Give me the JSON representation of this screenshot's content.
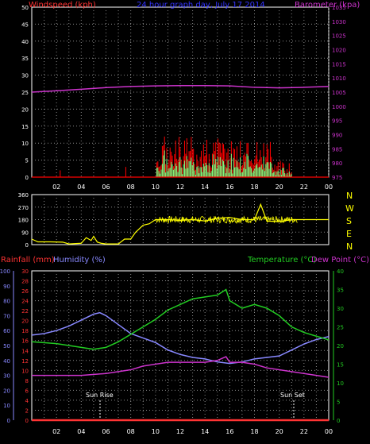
{
  "colors": {
    "wind": "#ff0000",
    "gust_fill": "#ffffff",
    "avg_fill": "#7fff7f",
    "barometer": "#cc33cc",
    "title": "#3333ff",
    "direction": "#ffff00",
    "rainfall": "#ff3333",
    "humidity": "#8888ff",
    "temperature": "#22cc22",
    "dewpoint": "#cc33cc",
    "grid": "#8a8a8a",
    "axis_labels": "#ffffff"
  },
  "top_panel": {
    "title": "24 hour graph day, July 17 2014",
    "left_label": "Windspeed (kph)",
    "right_label": "Barometer (kpa)"
  },
  "direction_panel": {
    "compass": [
      "N",
      "W",
      "S",
      "E",
      "N"
    ]
  },
  "bottom_panel": {
    "rain_label": "Rainfall (mm)",
    "hum_label": "Humidity (%)",
    "temp_label": "Temperature (°C)",
    "dew_label": "Dew Point (°C)",
    "sunrise_label": "Sun Rise",
    "sunset_label": "Sun Set"
  },
  "chart_data": [
    {
      "type": "line",
      "title": "24 hour graph day, July 17 2014",
      "x_label": "",
      "x_ticks": [
        "02",
        "04",
        "06",
        "08",
        "10",
        "12",
        "14",
        "16",
        "18",
        "20",
        "22",
        "00"
      ],
      "y_left": {
        "label": "Windspeed (kph)",
        "range": [
          0,
          50
        ],
        "ticks": [
          0,
          5,
          10,
          15,
          20,
          25,
          30,
          35,
          40,
          45,
          50
        ]
      },
      "y_right": {
        "label": "Barometer (kpa)",
        "range": [
          975,
          1035
        ],
        "ticks": [
          975,
          980,
          985,
          990,
          995,
          1000,
          1005,
          1010,
          1015,
          1020,
          1025,
          1030,
          1035
        ]
      },
      "grid": true,
      "series": [
        {
          "name": "Barometer (kpa)",
          "axis": "right",
          "x": [
            0,
            2,
            4,
            6,
            8,
            10,
            12,
            14,
            16,
            18,
            20,
            22,
            24
          ],
          "y": [
            1005.0,
            1005.5,
            1006.0,
            1006.6,
            1007.0,
            1007.2,
            1007.3,
            1007.3,
            1007.2,
            1006.7,
            1006.5,
            1006.7,
            1007.0
          ]
        }
      ]
    },
    {
      "type": "line",
      "title": "",
      "x_ticks": [
        "02",
        "04",
        "06",
        "08",
        "10",
        "12",
        "14",
        "16",
        "18",
        "20",
        "22",
        "00"
      ],
      "y_left": {
        "label": "",
        "range": [
          0,
          360
        ],
        "ticks": [
          0,
          90,
          180,
          270,
          360
        ]
      },
      "y_right": {
        "labels": [
          "N",
          "W",
          "S",
          "E",
          "N"
        ]
      },
      "grid": true,
      "series": [
        {
          "name": "",
          "x": [
            0,
            0.5,
            1.5,
            2.5,
            3.0,
            4.0,
            4.4,
            4.8,
            5.0,
            5.3,
            5.6,
            6.0,
            7.0,
            7.5,
            8.0,
            8.4,
            9.0,
            9.5,
            10.0,
            11,
            12,
            13,
            14,
            15,
            16,
            17,
            18,
            18.5,
            19,
            20,
            21,
            22,
            23,
            24
          ],
          "y": [
            40,
            20,
            20,
            18,
            5,
            10,
            50,
            30,
            60,
            18,
            10,
            5,
            5,
            40,
            40,
            90,
            140,
            150,
            180,
            180,
            175,
            180,
            170,
            190,
            195,
            180,
            180,
            290,
            170,
            165,
            180,
            180,
            180,
            180
          ]
        }
      ]
    },
    {
      "type": "line",
      "title": "",
      "x_ticks": [
        "02",
        "04",
        "06",
        "08",
        "10",
        "12",
        "14",
        "16",
        "18",
        "20",
        "22",
        "00"
      ],
      "y_left_humidity": {
        "label": "Humidity (%)",
        "range": [
          0,
          100
        ],
        "ticks": [
          0,
          10,
          20,
          30,
          40,
          50,
          60,
          70,
          80,
          90,
          100
        ]
      },
      "y_left_rain": {
        "label": "Rainfall (mm)",
        "range": [
          0,
          30
        ],
        "ticks": [
          0,
          2,
          4,
          6,
          8,
          10,
          12,
          14,
          16,
          18,
          20,
          22,
          24,
          26,
          28,
          30
        ]
      },
      "y_right": {
        "label": "Temperature (°C)Dew Point (°C)",
        "range": [
          0,
          40
        ],
        "ticks": [
          0,
          5,
          10,
          15,
          20,
          25,
          30,
          35,
          40
        ]
      },
      "grid": true,
      "annotations": [
        "Sun Rise",
        "Sun Set"
      ],
      "series": [
        {
          "name": "Humidity (%)",
          "axis": "humidity",
          "x": [
            0,
            1,
            2,
            3,
            4,
            5,
            5.5,
            6,
            7,
            8,
            9,
            10,
            11,
            12,
            13,
            14,
            15,
            16,
            17,
            18,
            19,
            20,
            21,
            22,
            23,
            24
          ],
          "y": [
            57,
            58,
            60,
            63,
            67,
            71,
            72,
            70,
            64,
            58,
            55,
            52,
            47,
            44,
            42,
            41,
            39,
            38,
            39,
            41,
            42,
            43,
            47,
            51,
            54,
            56
          ]
        },
        {
          "name": "Temperature (°C)",
          "axis": "temp",
          "x": [
            0,
            2,
            4,
            5,
            6,
            7,
            8,
            9,
            10,
            11,
            12,
            13,
            14,
            15,
            15.7,
            16,
            17,
            18,
            19,
            20,
            21,
            22,
            23,
            24
          ],
          "y": [
            21,
            20.5,
            19.5,
            19,
            19.5,
            21,
            23,
            25,
            27,
            29.5,
            31,
            32.5,
            33,
            33.5,
            35,
            32,
            30,
            31,
            30,
            28,
            25,
            23.5,
            22.5,
            21.5
          ]
        },
        {
          "name": "Dew Point (°C)",
          "axis": "temp",
          "x": [
            0,
            2,
            4,
            6,
            7,
            8,
            9,
            10,
            11,
            12,
            13,
            14,
            15,
            15.7,
            16,
            17,
            18,
            19,
            20,
            21,
            22,
            23,
            24
          ],
          "y": [
            12,
            12,
            12,
            12.5,
            13,
            13.5,
            14.5,
            15,
            15.5,
            15.5,
            15.5,
            15.5,
            16,
            17,
            15.5,
            15.5,
            15,
            14,
            13.5,
            13,
            12.5,
            12,
            11.5
          ]
        },
        {
          "name": "Rainfall (mm)",
          "axis": "rain",
          "x": [
            0,
            24
          ],
          "y": [
            0,
            0
          ]
        }
      ]
    }
  ]
}
